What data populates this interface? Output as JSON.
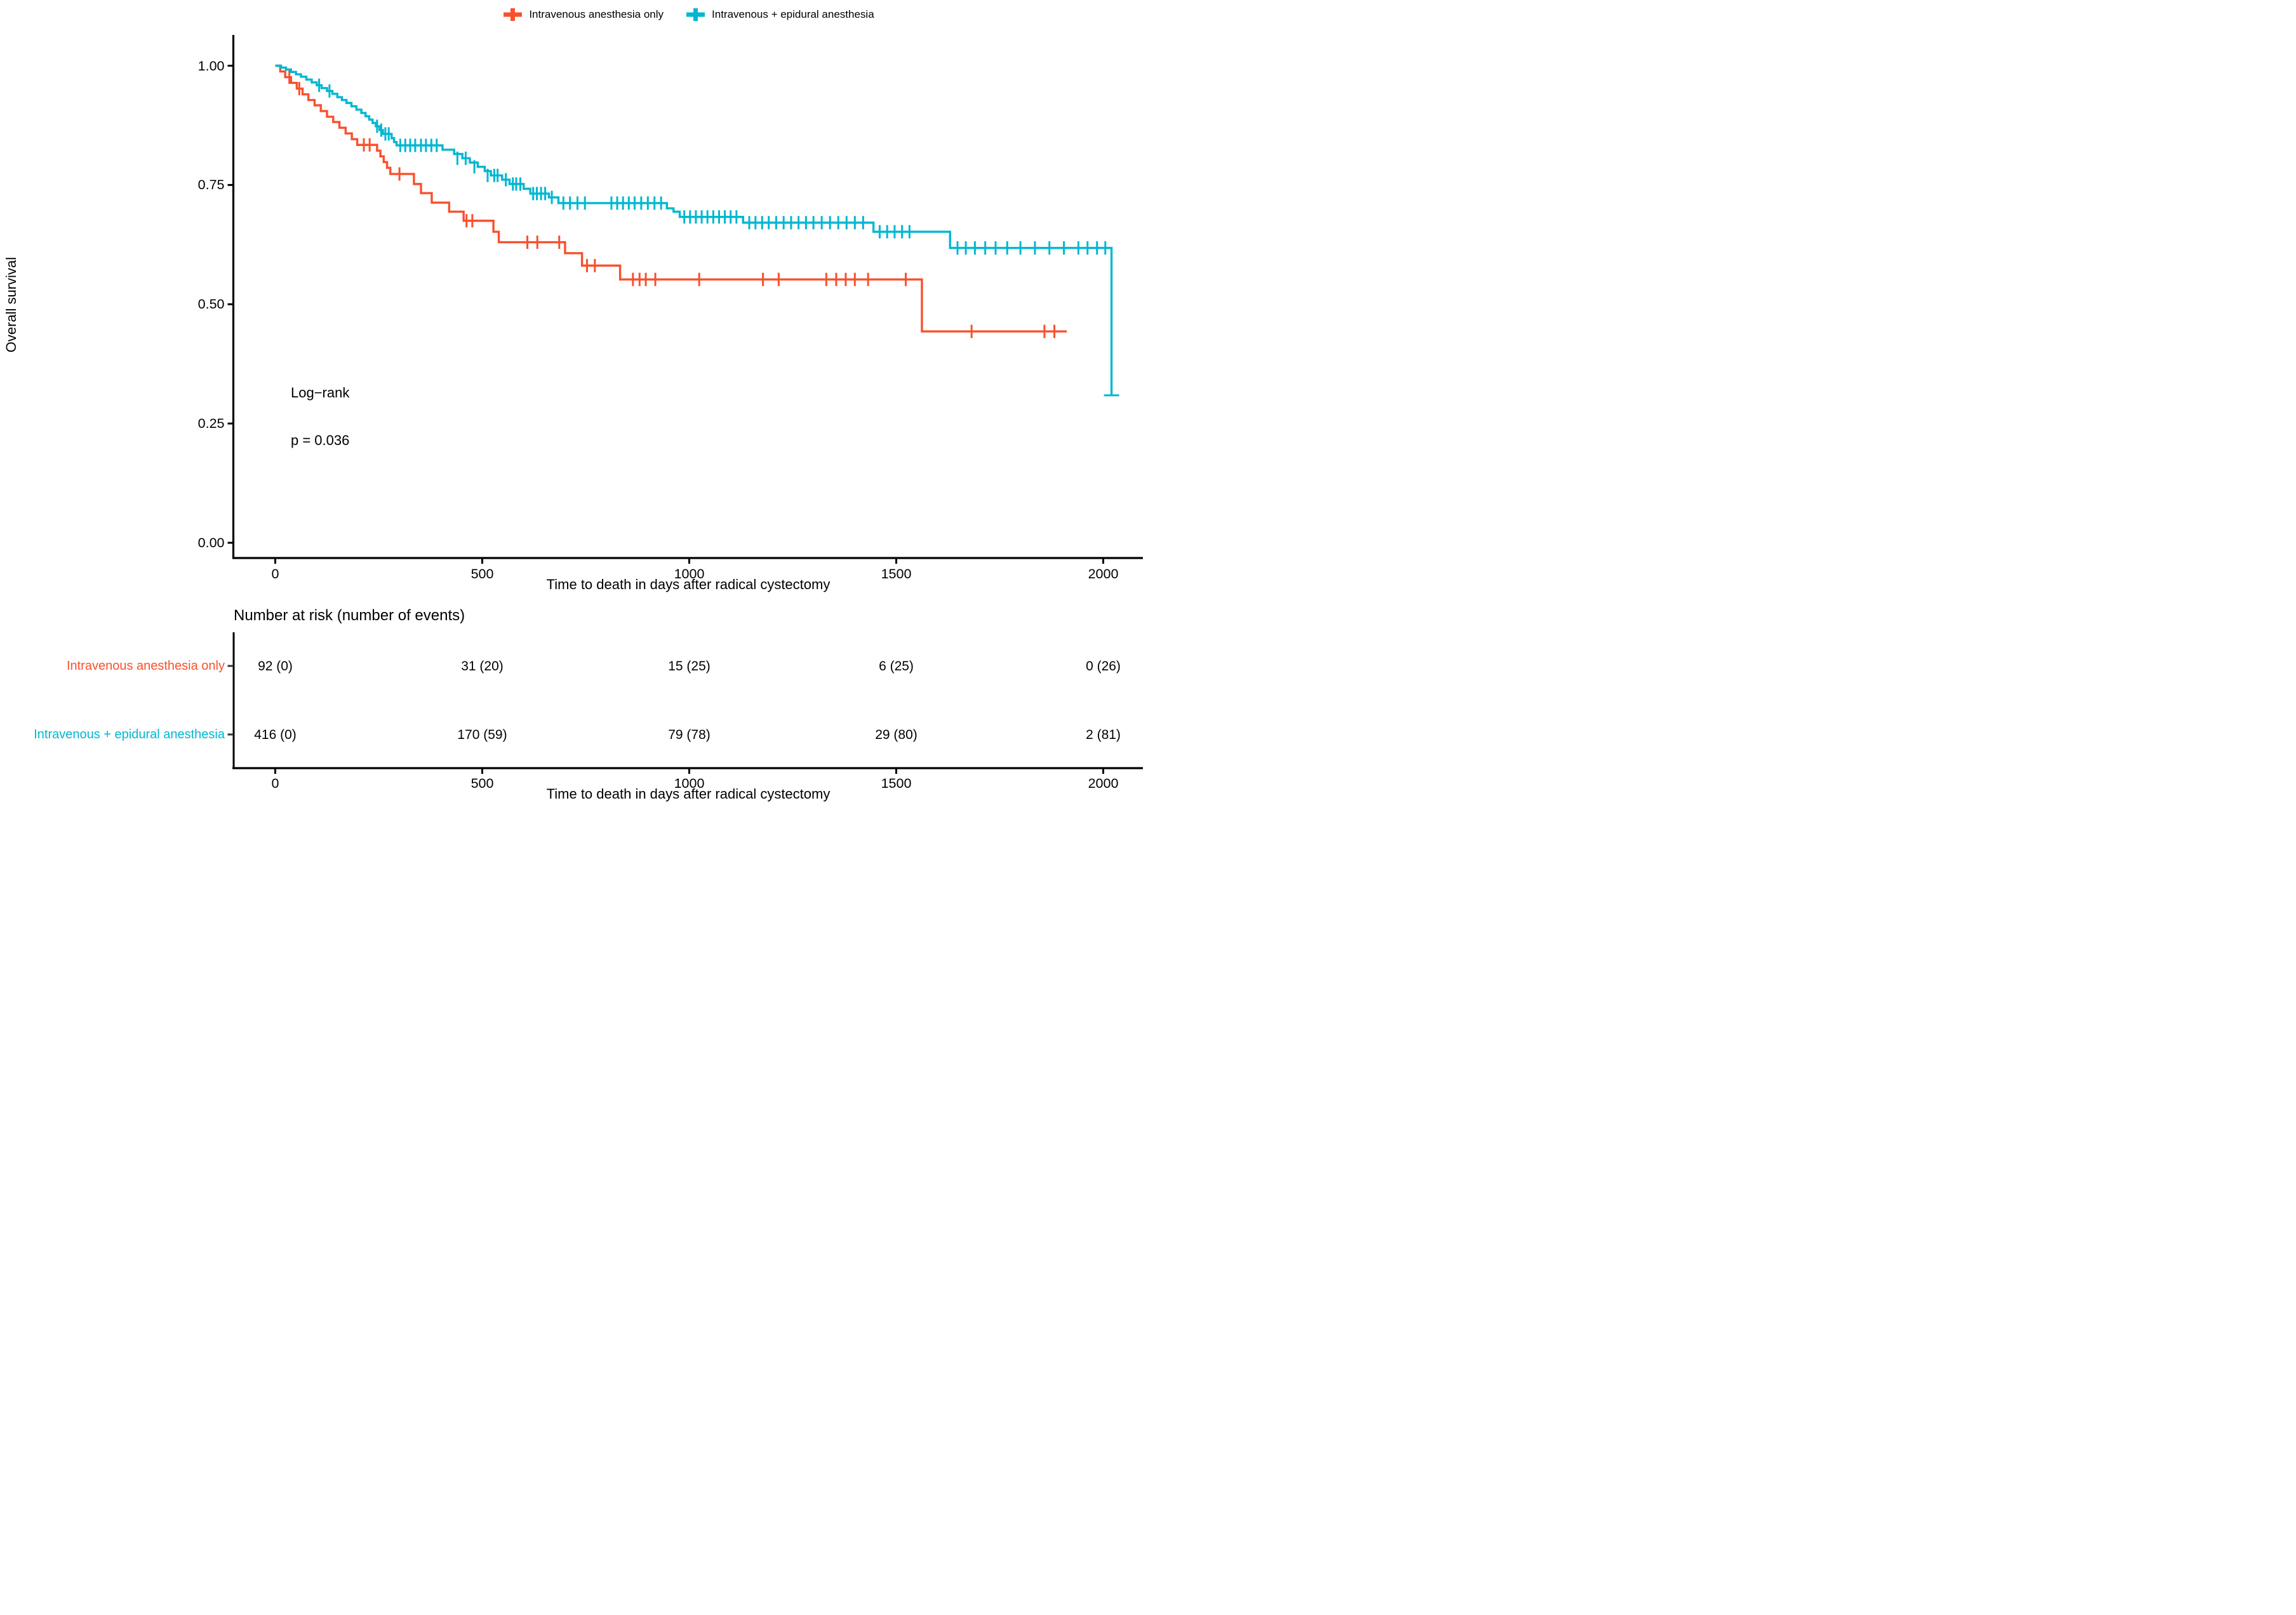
{
  "legend": {
    "items": [
      {
        "label": "Intravenous anesthesia only",
        "color": "#F8502F"
      },
      {
        "label": "Intravenous + epidural anesthesia",
        "color": "#00B7D0"
      }
    ]
  },
  "y_axis": {
    "title": "Overall survival",
    "tick_labels": [
      "1.00",
      "0.75",
      "0.50",
      "0.25",
      "0.00"
    ],
    "tick_values": [
      1.0,
      0.75,
      0.5,
      0.25,
      0.0
    ]
  },
  "x_axis": {
    "title": "Time to death in days after radical cystectomy",
    "tick_labels": [
      "0",
      "500",
      "1000",
      "1500",
      "2000"
    ],
    "tick_values": [
      0,
      500,
      1000,
      1500,
      2000
    ]
  },
  "annotation": {
    "line1": "Log−rank",
    "line2": "p = 0.036"
  },
  "risk_table": {
    "title": "Number at risk (number of events)",
    "x_axis_title": "Time to death in days after radical cystectomy",
    "tick_labels": [
      "0",
      "500",
      "1000",
      "1500",
      "2000"
    ],
    "rows": [
      {
        "label": "Intravenous anesthesia only",
        "color": "#F8502F",
        "values": [
          "92 (0)",
          "31 (20)",
          "15 (25)",
          "6 (25)",
          "0 (26)"
        ]
      },
      {
        "label": "Intravenous + epidural anesthesia",
        "color": "#00B7D0",
        "values": [
          "416 (0)",
          "170 (59)",
          "79 (78)",
          "29 (80)",
          "2 (81)"
        ]
      }
    ]
  },
  "chart_data": {
    "type": "line",
    "subtype": "kaplan-meier-step",
    "title": "",
    "xlabel": "Time to death in days after radical cystectomy",
    "ylabel": "Overall survival",
    "xlim": [
      0,
      2100
    ],
    "ylim": [
      0.0,
      1.0
    ],
    "grid": false,
    "legend_position": "top",
    "at_risk_times": [
      0,
      500,
      1000,
      1500,
      2000
    ],
    "series": [
      {
        "name": "Intravenous anesthesia only",
        "color": "#F8502F",
        "start": [
          0,
          1.0
        ],
        "end": 1912,
        "steps": [
          [
            12,
            0.988
          ],
          [
            24,
            0.976
          ],
          [
            38,
            0.964
          ],
          [
            52,
            0.952
          ],
          [
            66,
            0.94
          ],
          [
            80,
            0.928
          ],
          [
            95,
            0.917
          ],
          [
            110,
            0.905
          ],
          [
            125,
            0.893
          ],
          [
            140,
            0.882
          ],
          [
            155,
            0.87
          ],
          [
            170,
            0.858
          ],
          [
            185,
            0.846
          ],
          [
            198,
            0.834
          ],
          [
            246,
            0.822
          ],
          [
            254,
            0.81
          ],
          [
            262,
            0.798
          ],
          [
            270,
            0.786
          ],
          [
            278,
            0.773
          ],
          [
            335,
            0.752
          ],
          [
            352,
            0.733
          ],
          [
            378,
            0.713
          ],
          [
            420,
            0.694
          ],
          [
            455,
            0.675
          ],
          [
            527,
            0.652
          ],
          [
            540,
            0.63
          ],
          [
            700,
            0.607
          ],
          [
            741,
            0.581
          ],
          [
            833,
            0.552
          ],
          [
            1562,
            0.443
          ]
        ],
        "censors": [
          [
            34,
            0.976
          ],
          [
            58,
            0.952
          ],
          [
            214,
            0.834
          ],
          [
            228,
            0.834
          ],
          [
            300,
            0.773
          ],
          [
            462,
            0.675
          ],
          [
            476,
            0.675
          ],
          [
            609,
            0.63
          ],
          [
            633,
            0.63
          ],
          [
            686,
            0.63
          ],
          [
            753,
            0.581
          ],
          [
            772,
            0.581
          ],
          [
            864,
            0.552
          ],
          [
            880,
            0.552
          ],
          [
            895,
            0.552
          ],
          [
            918,
            0.552
          ],
          [
            1024,
            0.552
          ],
          [
            1178,
            0.552
          ],
          [
            1216,
            0.552
          ],
          [
            1331,
            0.552
          ],
          [
            1355,
            0.552
          ],
          [
            1378,
            0.552
          ],
          [
            1400,
            0.552
          ],
          [
            1432,
            0.552
          ],
          [
            1523,
            0.552
          ],
          [
            1682,
            0.443
          ],
          [
            1858,
            0.443
          ],
          [
            1882,
            0.443
          ]
        ]
      },
      {
        "name": "Intravenous + epidural anesthesia",
        "color": "#00B7D0",
        "start": [
          0,
          1.0
        ],
        "end": 2020,
        "steps": [
          [
            14,
            0.996
          ],
          [
            26,
            0.992
          ],
          [
            38,
            0.987
          ],
          [
            50,
            0.982
          ],
          [
            62,
            0.977
          ],
          [
            75,
            0.971
          ],
          [
            88,
            0.965
          ],
          [
            100,
            0.959
          ],
          [
            112,
            0.953
          ],
          [
            125,
            0.947
          ],
          [
            138,
            0.941
          ],
          [
            150,
            0.934
          ],
          [
            161,
            0.928
          ],
          [
            172,
            0.922
          ],
          [
            184,
            0.915
          ],
          [
            196,
            0.908
          ],
          [
            208,
            0.901
          ],
          [
            218,
            0.894
          ],
          [
            227,
            0.887
          ],
          [
            235,
            0.88
          ],
          [
            243,
            0.873
          ],
          [
            252,
            0.865
          ],
          [
            260,
            0.857
          ],
          [
            281,
            0.848
          ],
          [
            287,
            0.84
          ],
          [
            293,
            0.833
          ],
          [
            404,
            0.824
          ],
          [
            432,
            0.815
          ],
          [
            452,
            0.806
          ],
          [
            470,
            0.797
          ],
          [
            489,
            0.788
          ],
          [
            506,
            0.779
          ],
          [
            521,
            0.77
          ],
          [
            548,
            0.761
          ],
          [
            566,
            0.752
          ],
          [
            600,
            0.742
          ],
          [
            616,
            0.732
          ],
          [
            661,
            0.724
          ],
          [
            684,
            0.712
          ],
          [
            946,
            0.701
          ],
          [
            962,
            0.694
          ],
          [
            977,
            0.683
          ],
          [
            1130,
            0.671
          ],
          [
            1445,
            0.652
          ],
          [
            1630,
            0.618
          ],
          [
            2020,
            0.309
          ]
        ],
        "censors": [
          [
            106,
            0.959
          ],
          [
            131,
            0.947
          ],
          [
            246,
            0.873
          ],
          [
            256,
            0.865
          ],
          [
            266,
            0.857
          ],
          [
            274,
            0.857
          ],
          [
            302,
            0.833
          ],
          [
            314,
            0.833
          ],
          [
            326,
            0.833
          ],
          [
            338,
            0.833
          ],
          [
            352,
            0.833
          ],
          [
            364,
            0.833
          ],
          [
            377,
            0.833
          ],
          [
            390,
            0.833
          ],
          [
            440,
            0.806
          ],
          [
            460,
            0.806
          ],
          [
            481,
            0.788
          ],
          [
            513,
            0.77
          ],
          [
            529,
            0.77
          ],
          [
            537,
            0.77
          ],
          [
            557,
            0.761
          ],
          [
            574,
            0.752
          ],
          [
            582,
            0.752
          ],
          [
            592,
            0.752
          ],
          [
            623,
            0.732
          ],
          [
            632,
            0.732
          ],
          [
            642,
            0.732
          ],
          [
            652,
            0.732
          ],
          [
            668,
            0.724
          ],
          [
            696,
            0.712
          ],
          [
            712,
            0.712
          ],
          [
            730,
            0.712
          ],
          [
            748,
            0.712
          ],
          [
            812,
            0.712
          ],
          [
            826,
            0.712
          ],
          [
            840,
            0.712
          ],
          [
            854,
            0.712
          ],
          [
            868,
            0.712
          ],
          [
            884,
            0.712
          ],
          [
            900,
            0.712
          ],
          [
            916,
            0.712
          ],
          [
            932,
            0.712
          ],
          [
            988,
            0.683
          ],
          [
            1002,
            0.683
          ],
          [
            1016,
            0.683
          ],
          [
            1030,
            0.683
          ],
          [
            1044,
            0.683
          ],
          [
            1058,
            0.683
          ],
          [
            1072,
            0.683
          ],
          [
            1086,
            0.683
          ],
          [
            1100,
            0.683
          ],
          [
            1114,
            0.683
          ],
          [
            1145,
            0.671
          ],
          [
            1160,
            0.671
          ],
          [
            1176,
            0.671
          ],
          [
            1192,
            0.671
          ],
          [
            1210,
            0.671
          ],
          [
            1228,
            0.671
          ],
          [
            1246,
            0.671
          ],
          [
            1264,
            0.671
          ],
          [
            1282,
            0.671
          ],
          [
            1300,
            0.671
          ],
          [
            1320,
            0.671
          ],
          [
            1340,
            0.671
          ],
          [
            1360,
            0.671
          ],
          [
            1380,
            0.671
          ],
          [
            1400,
            0.671
          ],
          [
            1420,
            0.671
          ],
          [
            1460,
            0.652
          ],
          [
            1478,
            0.652
          ],
          [
            1496,
            0.652
          ],
          [
            1514,
            0.652
          ],
          [
            1532,
            0.652
          ],
          [
            1648,
            0.618
          ],
          [
            1668,
            0.618
          ],
          [
            1690,
            0.618
          ],
          [
            1715,
            0.618
          ],
          [
            1740,
            0.618
          ],
          [
            1768,
            0.618
          ],
          [
            1800,
            0.618
          ],
          [
            1835,
            0.618
          ],
          [
            1870,
            0.618
          ],
          [
            1905,
            0.618
          ],
          [
            1940,
            0.618
          ],
          [
            1962,
            0.618
          ],
          [
            1985,
            0.618
          ],
          [
            2005,
            0.618
          ]
        ],
        "terminal_censor": [
          2020,
          0.309
        ]
      }
    ]
  }
}
